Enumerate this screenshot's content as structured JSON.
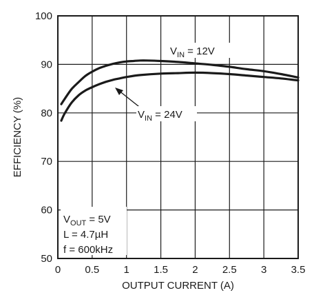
{
  "chart_data": {
    "type": "line",
    "xlabel": "OUTPUT CURRENT (A)",
    "ylabel": "EFFICIENCY (%)",
    "xlim": [
      0,
      3.5
    ],
    "ylim": [
      50,
      100
    ],
    "x_ticks": [
      "0",
      "0.5",
      "1",
      "1.5",
      "2",
      "2.5",
      "3",
      "3.5"
    ],
    "y_ticks": [
      "50",
      "60",
      "70",
      "80",
      "90",
      "100"
    ],
    "grid": true,
    "series": [
      {
        "name": "VIN = 12V",
        "x": [
          0.05,
          0.1,
          0.2,
          0.3,
          0.4,
          0.5,
          0.6,
          0.7,
          0.8,
          0.9,
          1.0,
          1.1,
          1.2,
          1.3,
          1.5,
          1.75,
          2.0,
          2.25,
          2.5,
          2.75,
          3.0,
          3.25,
          3.5
        ],
        "y": [
          81.8,
          82.9,
          84.9,
          86.3,
          87.6,
          88.5,
          89.2,
          89.7,
          90.1,
          90.4,
          90.6,
          90.7,
          90.8,
          90.8,
          90.7,
          90.5,
          90.2,
          89.9,
          89.5,
          89.0,
          88.6,
          88.0,
          87.3
        ]
      },
      {
        "name": "VIN = 24V",
        "x": [
          0.05,
          0.1,
          0.2,
          0.3,
          0.4,
          0.5,
          0.6,
          0.7,
          0.8,
          0.9,
          1.0,
          1.2,
          1.5,
          1.75,
          2.0,
          2.25,
          2.5,
          2.75,
          3.0,
          3.25,
          3.5
        ],
        "y": [
          78.4,
          79.9,
          82.1,
          83.6,
          84.6,
          85.3,
          85.9,
          86.4,
          86.8,
          87.1,
          87.4,
          87.8,
          88.1,
          88.2,
          88.3,
          88.2,
          88.0,
          87.7,
          87.4,
          87.1,
          86.7
        ]
      }
    ],
    "annotations": [
      {
        "main": "V",
        "sub": "IN",
        "rest": " = 12V"
      },
      {
        "main": "V",
        "sub": "IN",
        "rest": " = 24V"
      }
    ],
    "conditions": [
      {
        "main": "V",
        "sub": "OUT",
        "rest": " = 5V"
      },
      {
        "main": "L = 4.7µH",
        "sub": "",
        "rest": ""
      },
      {
        "main": "f = 600kHz",
        "sub": "",
        "rest": ""
      }
    ]
  }
}
